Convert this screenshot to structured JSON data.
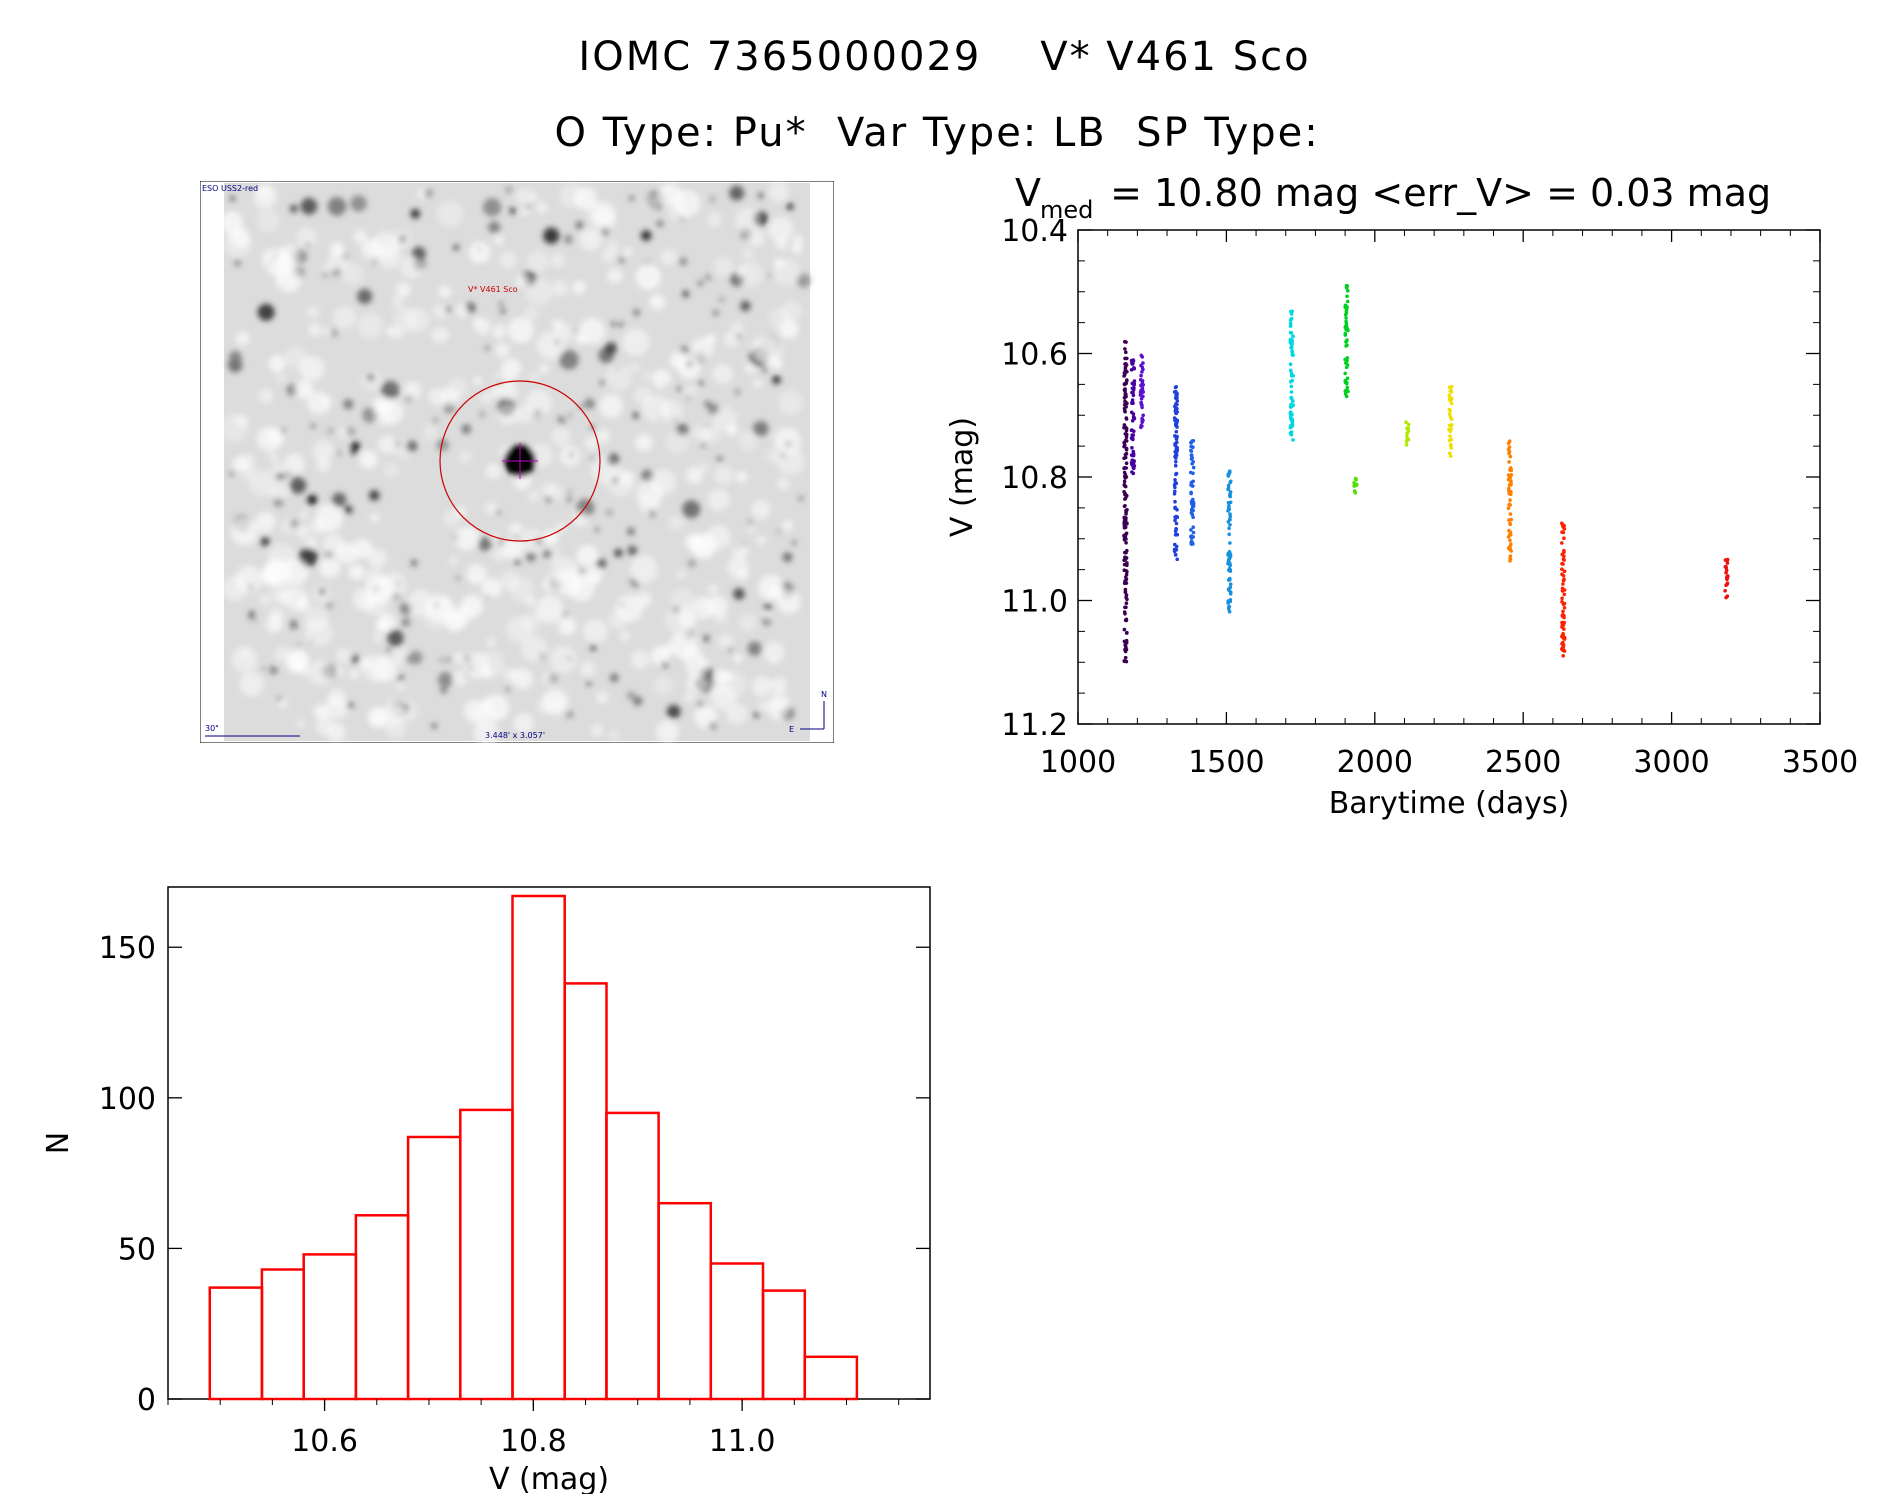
{
  "header": {
    "line1": "IOMC 7365000029    V* V461 Sco",
    "line2": "O Type: Pu*  Var Type: LB  SP Type: "
  },
  "finder": {
    "survey_label": "ESO USS2-red",
    "object_label": "V* V461 Sco",
    "scale_label": "30\"",
    "size_label": "3.448' x 3.057'",
    "north_label": "N",
    "east_label": "E"
  },
  "lightcurve": {
    "vmed_label": "V",
    "vmed_sub": "med",
    "vmed_text": " = 10.80 mag <err_V> = 0.03 mag",
    "xlabel": "Barytime (days)",
    "ylabel": "V (mag)",
    "xticks": [
      "1000",
      "1500",
      "2000",
      "2500",
      "3000",
      "3500"
    ],
    "yticks": [
      "10.4",
      "10.6",
      "10.8",
      "11.0",
      "11.2"
    ]
  },
  "histogram": {
    "xlabel": "V (mag)",
    "ylabel": "N",
    "xticks": [
      "10.6",
      "10.8",
      "11.0"
    ],
    "yticks": [
      "0",
      "50",
      "100",
      "150"
    ]
  },
  "colors": {
    "histogram": "#ff0000",
    "finder_circle": "#cc0000",
    "finder_label": "#cc0000",
    "finder_text": "#000080"
  },
  "chart_data": [
    {
      "type": "scatter",
      "xlabel": "Barytime (days)",
      "ylabel": "V (mag)",
      "xlim": [
        1000,
        3500
      ],
      "ylim": [
        11.2,
        10.4
      ],
      "y_inverted": true,
      "series": [
        {
          "color": "#3c0050",
          "x": 1160,
          "ymin": 10.58,
          "ymax": 11.1
        },
        {
          "color": "#4a00a0",
          "x": 1185,
          "ymin": 10.6,
          "ymax": 10.8
        },
        {
          "color": "#5a10d0",
          "x": 1215,
          "ymin": 10.6,
          "ymax": 10.72
        },
        {
          "color": "#2040e0",
          "x": 1330,
          "ymin": 10.65,
          "ymax": 10.94
        },
        {
          "color": "#2060e8",
          "x": 1385,
          "ymin": 10.74,
          "ymax": 10.91
        },
        {
          "color": "#1890e0",
          "x": 1510,
          "ymin": 10.79,
          "ymax": 11.02
        },
        {
          "color": "#00d8e0",
          "x": 1720,
          "ymin": 10.53,
          "ymax": 10.74
        },
        {
          "color": "#00d020",
          "x": 1905,
          "ymin": 10.49,
          "ymax": 10.67
        },
        {
          "color": "#50e000",
          "x": 1935,
          "ymin": 10.8,
          "ymax": 10.83
        },
        {
          "color": "#b0e800",
          "x": 2110,
          "ymin": 10.71,
          "ymax": 10.75
        },
        {
          "color": "#f0e000",
          "x": 2255,
          "ymin": 10.65,
          "ymax": 10.77
        },
        {
          "color": "#ff8000",
          "x": 2455,
          "ymin": 10.74,
          "ymax": 10.94
        },
        {
          "color": "#ff2000",
          "x": 2635,
          "ymin": 10.87,
          "ymax": 11.09
        },
        {
          "color": "#ee1010",
          "x": 3185,
          "ymin": 10.93,
          "ymax": 11.0
        }
      ]
    },
    {
      "type": "bar",
      "xlabel": "V (mag)",
      "ylabel": "N",
      "xlim": [
        10.45,
        11.18
      ],
      "ylim": [
        0,
        170
      ],
      "bin_edges": [
        10.49,
        10.54,
        10.58,
        10.63,
        10.68,
        10.73,
        10.78,
        10.83,
        10.87,
        10.92,
        10.97,
        11.02,
        11.06,
        11.11
      ],
      "values": [
        37,
        43,
        48,
        61,
        87,
        96,
        167,
        138,
        95,
        65,
        45,
        36,
        14
      ]
    }
  ]
}
